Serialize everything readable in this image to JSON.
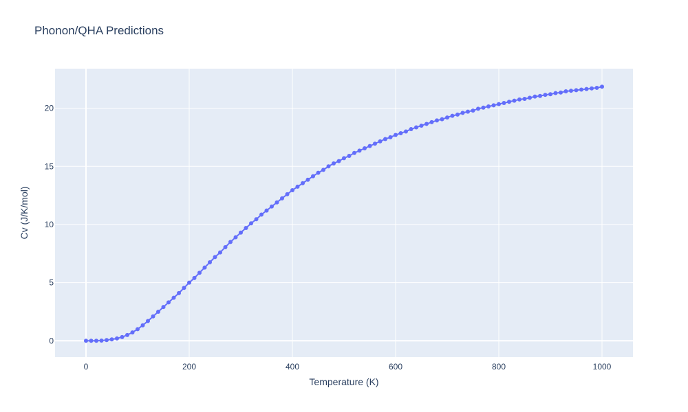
{
  "chart_data": {
    "type": "line",
    "title": "Phonon/QHA Predictions",
    "xlabel": "Temperature (K)",
    "ylabel": "Cv (J/K/mol)",
    "xlim": [
      -60,
      1060
    ],
    "ylim": [
      -1.4,
      23.4
    ],
    "x_ticks": [
      0,
      200,
      400,
      600,
      800,
      1000
    ],
    "y_ticks": [
      0,
      5,
      10,
      15,
      20
    ],
    "x_tick_labels": [
      "0",
      "200",
      "400",
      "600",
      "800",
      "1000"
    ],
    "y_tick_labels": [
      "0",
      "5",
      "10",
      "15",
      "20"
    ],
    "grid": true,
    "legend": "none",
    "colors": {
      "series": "#636efa",
      "plot_bg": "#e5ecf6",
      "grid": "#ffffff",
      "text": "#2a3f5f"
    },
    "series": [
      {
        "x": [
          0,
          10,
          20,
          30,
          40,
          50,
          60,
          70,
          80,
          90,
          100,
          110,
          120,
          130,
          140,
          150,
          160,
          170,
          180,
          190,
          200,
          210,
          220,
          230,
          240,
          250,
          260,
          270,
          280,
          290,
          300,
          310,
          320,
          330,
          340,
          350,
          360,
          370,
          380,
          390,
          400,
          410,
          420,
          430,
          440,
          450,
          460,
          470,
          480,
          490,
          500,
          510,
          520,
          530,
          540,
          550,
          560,
          570,
          580,
          590,
          600,
          610,
          620,
          630,
          640,
          650,
          660,
          670,
          680,
          690,
          700,
          710,
          720,
          730,
          740,
          750,
          760,
          770,
          780,
          790,
          800,
          810,
          820,
          830,
          840,
          850,
          860,
          870,
          880,
          890,
          900,
          910,
          920,
          930,
          940,
          950,
          960,
          970,
          980,
          990,
          1000
        ],
        "y": [
          0,
          0,
          0,
          0.02,
          0.06,
          0.12,
          0.2,
          0.32,
          0.5,
          0.72,
          1.0,
          1.33,
          1.7,
          2.1,
          2.5,
          2.9,
          3.3,
          3.7,
          4.1,
          4.55,
          5.0,
          5.4,
          5.85,
          6.3,
          6.75,
          7.2,
          7.6,
          8.05,
          8.5,
          8.9,
          9.3,
          9.7,
          10.1,
          10.45,
          10.85,
          11.2,
          11.55,
          11.9,
          12.25,
          12.6,
          12.95,
          13.25,
          13.55,
          13.85,
          14.15,
          14.45,
          14.7,
          15.0,
          15.25,
          15.45,
          15.7,
          15.9,
          16.15,
          16.35,
          16.55,
          16.75,
          16.95,
          17.15,
          17.35,
          17.5,
          17.7,
          17.85,
          18.0,
          18.2,
          18.35,
          18.5,
          18.65,
          18.8,
          18.95,
          19.05,
          19.2,
          19.35,
          19.45,
          19.6,
          19.7,
          19.8,
          19.95,
          20.05,
          20.15,
          20.25,
          20.35,
          20.45,
          20.55,
          20.65,
          20.75,
          20.8,
          20.9,
          21.0,
          21.05,
          21.15,
          21.2,
          21.3,
          21.35,
          21.45,
          21.5,
          21.55,
          21.6,
          21.65,
          21.7,
          21.75,
          21.85
        ]
      }
    ]
  }
}
